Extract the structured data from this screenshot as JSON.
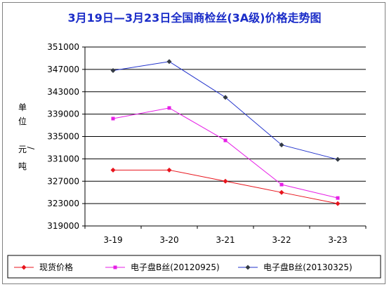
{
  "chart_data": {
    "type": "line",
    "title": "3月19日—3月23日全国商检丝(3A级)价格走势图",
    "ylabel": [
      "单",
      "位",
      "元",
      "/",
      "吨"
    ],
    "xlabel": "",
    "categories": [
      "3-19",
      "3-20",
      "3-21",
      "3-22",
      "3-23"
    ],
    "ylim": [
      319000,
      351000
    ],
    "yticks": [
      351000,
      347000,
      343000,
      339000,
      335000,
      331000,
      327000,
      323000,
      319000
    ],
    "grid": "horizontal",
    "legend_position": "bottom",
    "series": [
      {
        "name": "现货价格",
        "color": "#e8141c",
        "marker": "diamond",
        "values": [
          329000,
          329000,
          327000,
          325000,
          323000
        ]
      },
      {
        "name": "电子盘B丝(20120925)",
        "color": "#e61fe6",
        "marker": "square",
        "values": [
          338200,
          340100,
          334300,
          326400,
          324000
        ]
      },
      {
        "name": "电子盘B丝(20130325)",
        "color": "#2233cc",
        "marker": "diamond",
        "values": [
          346800,
          348400,
          342000,
          333500,
          330900
        ]
      }
    ]
  },
  "colors": {
    "title": "#1a2cc8",
    "grid": "#000000",
    "frame_border": "#808080"
  }
}
